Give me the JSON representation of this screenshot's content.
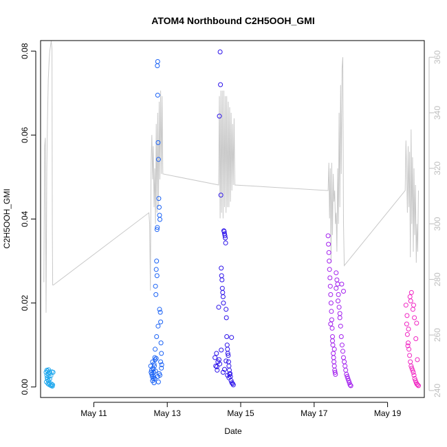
{
  "chart_data": {
    "type": "scatter",
    "title": "ATOM4 Northbound C2H5OOH_GMI",
    "xlabel": "Date",
    "ylabel": "C2H5OOH_GMI",
    "x_unit": "days (May, day of month)",
    "xlim": [
      9.55,
      20.0
    ],
    "ylim": [
      -0.0025,
      0.0825
    ],
    "y2lim": [
      237.5,
      366.0
    ],
    "x_ticks": [
      {
        "value": 11,
        "label": "May 11"
      },
      {
        "value": 13,
        "label": "May 13"
      },
      {
        "value": 15,
        "label": "May 15"
      },
      {
        "value": 17,
        "label": "May 17"
      },
      {
        "value": 19,
        "label": "May 19"
      }
    ],
    "y_ticks": [
      {
        "value": 0.0,
        "label": "0.00"
      },
      {
        "value": 0.02,
        "label": "0.02"
      },
      {
        "value": 0.04,
        "label": "0.04"
      },
      {
        "value": 0.06,
        "label": "0.06"
      },
      {
        "value": 0.08,
        "label": "0.08"
      }
    ],
    "y2_ticks": [
      {
        "value": 240,
        "label": "240"
      },
      {
        "value": 260,
        "label": "260"
      },
      {
        "value": 280,
        "label": "280"
      },
      {
        "value": 300,
        "label": "300"
      },
      {
        "value": 320,
        "label": "320"
      },
      {
        "value": 340,
        "label": "340"
      },
      {
        "value": 360,
        "label": "360"
      }
    ],
    "grid": false,
    "point_marker": "open circle",
    "colors": {
      "axis": "#000000",
      "right_axis": "#bebebe",
      "line": "#c8c8c8",
      "flight1": "#1fa8ee",
      "flight2": "#1a62f5",
      "flight3": "#2a10ea",
      "flight4": "#a21eee",
      "flight5": "#f025c2"
    },
    "series": [
      {
        "color": "#1fa8ee",
        "x": [
          9.7,
          9.71,
          9.72,
          9.72,
          9.73,
          9.74,
          9.74,
          9.75,
          9.76,
          9.76,
          9.77,
          9.78,
          9.78,
          9.79,
          9.8,
          9.8,
          9.81,
          9.82,
          9.83,
          9.84,
          9.85,
          9.86,
          9.87,
          9.88,
          9.89
        ],
        "y": [
          0.0035,
          0.0012,
          0.0028,
          0.004,
          0.0022,
          0.0018,
          0.0038,
          0.0008,
          0.0031,
          0.0015,
          0.0041,
          0.0025,
          0.0006,
          0.0036,
          0.0019,
          0.0009,
          0.0033,
          0.0004,
          0.0027,
          0.0003,
          0.0007,
          0.0036,
          0.0002,
          0.0005,
          0.0035
        ]
      },
      {
        "color": "#1a62f5",
        "x": [
          12.55,
          12.57,
          12.58,
          12.59,
          12.6,
          12.61,
          12.62,
          12.63,
          12.64,
          12.65,
          12.66,
          12.67,
          12.68,
          12.69,
          12.7,
          12.71,
          12.71,
          12.72,
          12.72,
          12.73,
          12.73,
          12.74,
          12.74,
          12.75,
          12.76,
          12.77,
          12.78,
          12.79,
          12.8,
          12.81,
          12.82,
          12.83,
          12.84,
          12.85,
          12.58,
          12.6,
          12.62,
          12.64,
          12.66,
          12.68,
          12.7,
          12.74,
          12.76,
          12.78,
          12.8,
          12.82,
          12.84,
          12.56,
          12.63,
          12.67,
          12.75,
          12.79
        ],
        "y": [
          0.005,
          0.004,
          0.003,
          0.0025,
          0.006,
          0.0045,
          0.002,
          0.0035,
          0.001,
          0.005,
          0.007,
          0.0065,
          0.024,
          0.022,
          0.028,
          0.012,
          0.03,
          0.0265,
          0.0375,
          0.038,
          0.0765,
          0.0775,
          0.0695,
          0.0582,
          0.0542,
          0.0449,
          0.0428,
          0.0409,
          0.0399,
          0.0178,
          0.0155,
          0.0105,
          0.008,
          0.0053,
          0.003,
          0.0015,
          0.0042,
          0.0055,
          0.002,
          0.0038,
          0.0068,
          0.0025,
          0.0012,
          0.0032,
          0.0028,
          0.006,
          0.0045,
          0.0035,
          0.0025,
          0.009,
          0.0145,
          0.0185
        ]
      },
      {
        "color": "#2a10ea",
        "x": [
          14.3,
          14.32,
          14.34,
          14.36,
          14.38,
          14.4,
          14.42,
          14.44,
          14.45,
          14.46,
          14.47,
          14.48,
          14.49,
          14.5,
          14.51,
          14.52,
          14.53,
          14.54,
          14.55,
          14.56,
          14.57,
          14.58,
          14.59,
          14.6,
          14.61,
          14.62,
          14.63,
          14.64,
          14.65,
          14.66,
          14.67,
          14.68,
          14.69,
          14.7,
          14.72,
          14.74,
          14.76,
          14.78,
          14.8,
          14.35,
          14.41,
          14.43,
          14.47,
          14.52,
          14.56,
          14.6,
          14.64,
          14.68,
          14.71,
          14.75
        ],
        "y": [
          0.007,
          0.005,
          0.008,
          0.004,
          0.006,
          0.019,
          0.0645,
          0.0798,
          0.072,
          0.0457,
          0.0283,
          0.0265,
          0.0255,
          0.0235,
          0.0225,
          0.0215,
          0.02,
          0.0372,
          0.037,
          0.0365,
          0.036,
          0.0355,
          0.0343,
          0.0185,
          0.0165,
          0.012,
          0.01,
          0.009,
          0.008,
          0.0075,
          0.006,
          0.005,
          0.004,
          0.003,
          0.0025,
          0.0015,
          0.001,
          0.0008,
          0.0005,
          0.0048,
          0.0065,
          0.0055,
          0.0088,
          0.0035,
          0.0042,
          0.0062,
          0.0028,
          0.0022,
          0.0032,
          0.0118
        ]
      },
      {
        "color": "#a21eee",
        "x": [
          17.38,
          17.39,
          17.4,
          17.41,
          17.42,
          17.43,
          17.44,
          17.45,
          17.46,
          17.47,
          17.48,
          17.49,
          17.5,
          17.51,
          17.52,
          17.53,
          17.54,
          17.55,
          17.56,
          17.57,
          17.58,
          17.6,
          17.62,
          17.64,
          17.66,
          17.68,
          17.7,
          17.72,
          17.74,
          17.76,
          17.78,
          17.8,
          17.82,
          17.84,
          17.86,
          17.88,
          17.9,
          17.92,
          17.94,
          17.96,
          17.98,
          18.0,
          17.45,
          17.5,
          17.55,
          17.6,
          17.65,
          17.7,
          17.75,
          17.8
        ],
        "y": [
          0.036,
          0.034,
          0.032,
          0.03,
          0.028,
          0.026,
          0.024,
          0.022,
          0.02,
          0.018,
          0.016,
          0.014,
          0.012,
          0.01,
          0.008,
          0.007,
          0.006,
          0.005,
          0.004,
          0.0035,
          0.003,
          0.0272,
          0.0255,
          0.0245,
          0.022,
          0.019,
          0.0165,
          0.0145,
          0.012,
          0.01,
          0.0085,
          0.007,
          0.006,
          0.005,
          0.004,
          0.003,
          0.0025,
          0.002,
          0.0015,
          0.001,
          0.0005,
          0.0003,
          0.015,
          0.011,
          0.009,
          0.0235,
          0.0205,
          0.0175,
          0.0245,
          0.0228
        ]
      },
      {
        "color": "#f025c2",
        "x": [
          19.5,
          19.52,
          19.54,
          19.56,
          19.58,
          19.6,
          19.62,
          19.64,
          19.66,
          19.68,
          19.7,
          19.72,
          19.74,
          19.76,
          19.78,
          19.8,
          19.82,
          19.84,
          19.53,
          19.57,
          19.61,
          19.65,
          19.69,
          19.73,
          19.77,
          19.81,
          19.55,
          19.63,
          19.71,
          19.79
        ],
        "y": [
          0.0195,
          0.015,
          0.0125,
          0.0105,
          0.009,
          0.0075,
          0.006,
          0.005,
          0.0045,
          0.004,
          0.0035,
          0.0028,
          0.002,
          0.0015,
          0.001,
          0.0007,
          0.0005,
          0.0003,
          0.017,
          0.0138,
          0.0215,
          0.0225,
          0.0185,
          0.0165,
          0.0115,
          0.0065,
          0.0098,
          0.0205,
          0.0195,
          0.0152
        ]
      }
    ],
    "pressure_line": {
      "axis": "right",
      "color": "#c8c8c8",
      "x": [
        9.64,
        9.66,
        9.68,
        9.7,
        9.72,
        9.74,
        9.76,
        9.78,
        9.8,
        9.82,
        9.84,
        9.86,
        9.87,
        9.88,
        9.9,
        12.5,
        12.52,
        12.54,
        12.56,
        12.58,
        12.6,
        12.62,
        12.64,
        12.66,
        12.68,
        12.7,
        12.72,
        12.74,
        12.76,
        12.78,
        12.8,
        12.82,
        12.84,
        12.86,
        12.88,
        14.4,
        14.42,
        14.44,
        14.46,
        14.48,
        14.5,
        14.52,
        14.54,
        14.56,
        14.58,
        14.6,
        14.62,
        14.64,
        14.66,
        14.68,
        14.7,
        14.72,
        14.74,
        14.76,
        14.78,
        14.8,
        14.82,
        14.84,
        17.38,
        17.4,
        17.42,
        17.44,
        17.46,
        17.48,
        17.5,
        17.52,
        17.54,
        17.56,
        17.58,
        17.6,
        17.62,
        17.64,
        17.66,
        17.68,
        17.7,
        17.72,
        17.74,
        17.76,
        17.78,
        17.8,
        17.82,
        19.48,
        19.5,
        19.52,
        19.54,
        19.56,
        19.58,
        19.6,
        19.62,
        19.64,
        19.66,
        19.68,
        19.7,
        19.72,
        19.74,
        19.76,
        19.78,
        19.8,
        19.82,
        19.84
      ],
      "y": [
        279,
        328,
        331,
        268,
        320,
        338,
        352,
        358,
        362,
        364,
        366,
        363,
        299,
        278,
        278,
        304,
        300,
        276,
        322,
        332,
        316,
        328,
        306,
        320,
        300,
        336,
        304,
        340,
        306,
        344,
        316,
        348,
        318,
        346,
        318,
        314,
        346,
        302,
        348,
        304,
        348,
        302,
        348,
        306,
        346,
        304,
        346,
        306,
        344,
        306,
        342,
        308,
        340,
        312,
        336,
        314,
        338,
        314,
        312,
        322,
        302,
        320,
        286,
        322,
        296,
        318,
        308,
        312,
        300,
        304,
        290,
        320,
        300,
        340,
        306,
        350,
        318,
        356,
        360,
        300,
        285,
        312,
        330,
        318,
        304,
        328,
        306,
        326,
        288,
        334,
        300,
        324,
        290,
        320,
        296,
        314,
        286,
        300,
        290,
        312
      ]
    }
  }
}
